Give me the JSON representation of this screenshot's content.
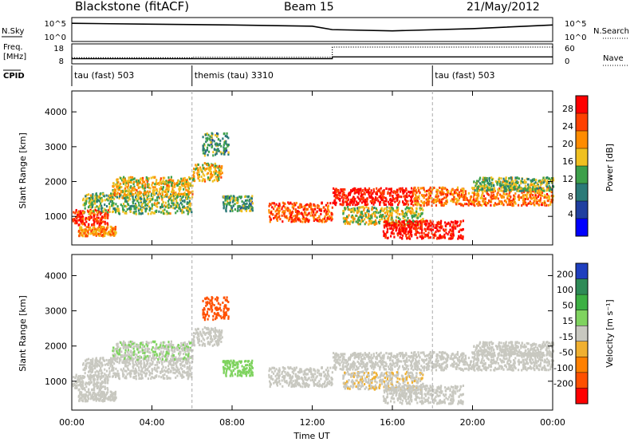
{
  "header": {
    "station": "Blackstone (fitACF)",
    "beam": "Beam 15",
    "date": "21/May/2012"
  },
  "panels": {
    "nsky_label": "N.Sky",
    "nsearch_label": "N.Search",
    "freq_label_1": "Freq.",
    "freq_label_2": "[MHz]",
    "nave_label": "Nave",
    "cpid_label": "CPID",
    "nsky_ticks": [
      "10^5",
      "10^0"
    ],
    "nsearch_ticks": [
      "10^5",
      "10^0"
    ],
    "freq_ticks": [
      "18",
      "8"
    ],
    "nave_ticks": [
      "60",
      "0"
    ],
    "cpid_segments": [
      {
        "label": "tau (fast) 503",
        "start_hour": 0
      },
      {
        "label": "themis (tau) 3310",
        "start_hour": 6
      },
      {
        "label": "tau (fast) 503",
        "start_hour": 18
      }
    ]
  },
  "colorbars": {
    "power_label": "Power [dB]",
    "power_ticks": [
      "28",
      "24",
      "20",
      "16",
      "12",
      "8",
      "4"
    ],
    "power_colors": [
      "#0000ff",
      "#1f3fa0",
      "#2b7a78",
      "#3da04a",
      "#f0c020",
      "#ff8c00",
      "#ff4000",
      "#ff0000"
    ],
    "velocity_label": "Velocity [m s⁻¹]",
    "velocity_ticks": [
      "200",
      "100",
      "50",
      "15",
      "-15",
      "-50",
      "-100",
      "-200"
    ],
    "velocity_colors": [
      "#1f3fbf",
      "#2e8b57",
      "#3cb043",
      "#7fd35f",
      "#c8c8c0",
      "#f0b030",
      "#ff8000",
      "#ff5000",
      "#ff0000"
    ]
  },
  "chart_data": {
    "type": "heatmap",
    "x_axis": {
      "label": "Time UT",
      "range_hours": [
        0,
        24
      ],
      "tick_labels": [
        "00:00",
        "04:00",
        "08:00",
        "12:00",
        "16:00",
        "20:00",
        "00:00"
      ]
    },
    "y_axis": {
      "label": "Slant Range [km]",
      "range": [
        180,
        4600
      ],
      "tick_labels": [
        "1000",
        "2000",
        "3000",
        "4000"
      ]
    },
    "panels": [
      {
        "name": "Power",
        "units": "dB",
        "scale": [
          0,
          30
        ]
      },
      {
        "name": "Velocity",
        "units": "m s^-1",
        "scale": [
          -250,
          250
        ]
      }
    ],
    "scatter_bands": [
      {
        "t0": 0.0,
        "t1": 1.8,
        "r_center": 1000,
        "r_width": 220,
        "power": 26,
        "velocity": 0
      },
      {
        "t0": 0.3,
        "t1": 2.2,
        "r_center": 600,
        "r_width": 140,
        "power": 20,
        "velocity": 0
      },
      {
        "t0": 0.5,
        "t1": 6.0,
        "r_center": 1400,
        "r_width": 300,
        "power": 14,
        "velocity": 0
      },
      {
        "t0": 2.0,
        "t1": 6.0,
        "r_center": 1900,
        "r_width": 260,
        "power": 18,
        "velocity": 10
      },
      {
        "t0": 6.0,
        "t1": 7.5,
        "r_center": 2300,
        "r_width": 260,
        "power": 18,
        "velocity": 0
      },
      {
        "t0": 6.5,
        "t1": 7.8,
        "r_center": 3100,
        "r_width": 320,
        "power": 12,
        "velocity": -180
      },
      {
        "t0": 7.5,
        "t1": 9.0,
        "r_center": 1400,
        "r_width": 220,
        "power": 12,
        "velocity": 30
      },
      {
        "t0": 9.8,
        "t1": 13.0,
        "r_center": 1150,
        "r_width": 280,
        "power": 24,
        "velocity": 0
      },
      {
        "t0": 13.0,
        "t1": 17.0,
        "r_center": 1600,
        "r_width": 240,
        "power": 28,
        "velocity": 0
      },
      {
        "t0": 13.5,
        "t1": 17.5,
        "r_center": 1050,
        "r_width": 260,
        "power": 16,
        "velocity": -10
      },
      {
        "t0": 15.5,
        "t1": 19.5,
        "r_center": 650,
        "r_width": 260,
        "power": 28,
        "velocity": 0
      },
      {
        "t0": 17.0,
        "t1": 24.0,
        "r_center": 1600,
        "r_width": 260,
        "power": 22,
        "velocity": 0
      },
      {
        "t0": 20.0,
        "t1": 24.0,
        "r_center": 1950,
        "r_width": 200,
        "power": 14,
        "velocity": 0
      }
    ],
    "nsky_series": {
      "x": [
        0,
        4,
        8,
        12,
        13,
        16,
        20,
        24
      ],
      "y": [
        10000,
        6000,
        4000,
        2000,
        300,
        150,
        500,
        4000
      ]
    },
    "frequency_series": {
      "x": [
        0,
        13,
        13,
        24
      ],
      "y": [
        10.5,
        10.5,
        11.5,
        11.5
      ]
    },
    "nave_series": {
      "x": [
        0,
        6,
        6,
        13,
        13,
        24
      ],
      "y": [
        20,
        20,
        22,
        22,
        60,
        60
      ]
    },
    "grid": false,
    "dashed_markers_hours": [
      6,
      18
    ]
  }
}
